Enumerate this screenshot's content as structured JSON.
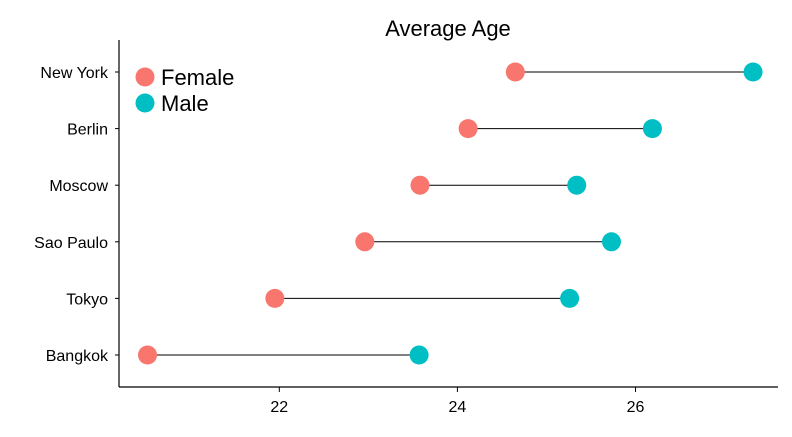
{
  "chart_data": {
    "type": "dumbbell",
    "title": "Average Age",
    "xlabel": "",
    "ylabel": "",
    "xlim": [
      20.2,
      27.6
    ],
    "x_ticks": [
      22,
      24,
      26
    ],
    "grid": false,
    "legend_position": "top-left",
    "categories": [
      "New York",
      "Berlin",
      "Moscow",
      "Sao Paulo",
      "Tokyo",
      "Bangkok"
    ],
    "series": [
      {
        "name": "Female",
        "color": "#F8766D",
        "values": [
          24.65,
          24.12,
          23.58,
          22.96,
          21.95,
          20.52
        ]
      },
      {
        "name": "Male",
        "color": "#00BFC4",
        "values": [
          27.32,
          26.19,
          25.34,
          25.73,
          25.26,
          23.57
        ]
      }
    ]
  }
}
